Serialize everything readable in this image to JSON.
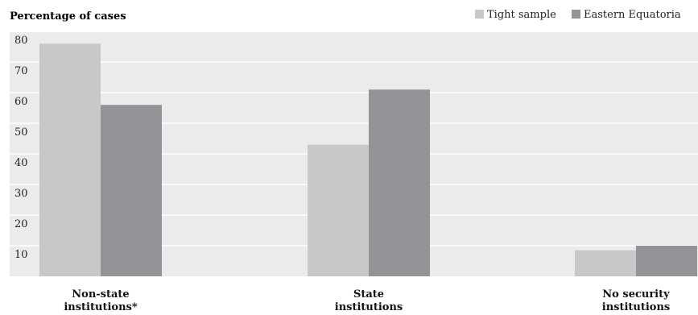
{
  "chart_data": {
    "type": "bar",
    "title": "",
    "ylabel": "Percentage of cases",
    "xlabel": "",
    "ylim": [
      0,
      80
    ],
    "yticks": [
      10,
      20,
      30,
      40,
      50,
      60,
      70,
      80
    ],
    "grid": true,
    "legend_position": "top-right",
    "categories": [
      [
        "Non-state",
        "institutions*"
      ],
      [
        "State",
        "institutions"
      ],
      [
        "No security",
        "institutions"
      ]
    ],
    "series": [
      {
        "name": "Tight sample",
        "color": "#c8c8c9",
        "values": [
          76,
          43,
          8.5
        ]
      },
      {
        "name": "Eastern Equatoria",
        "color": "#939497",
        "values": [
          56,
          61,
          10
        ]
      }
    ]
  },
  "colors": {
    "plot_background": "#ebebeb",
    "gridline": "#ffffff"
  }
}
